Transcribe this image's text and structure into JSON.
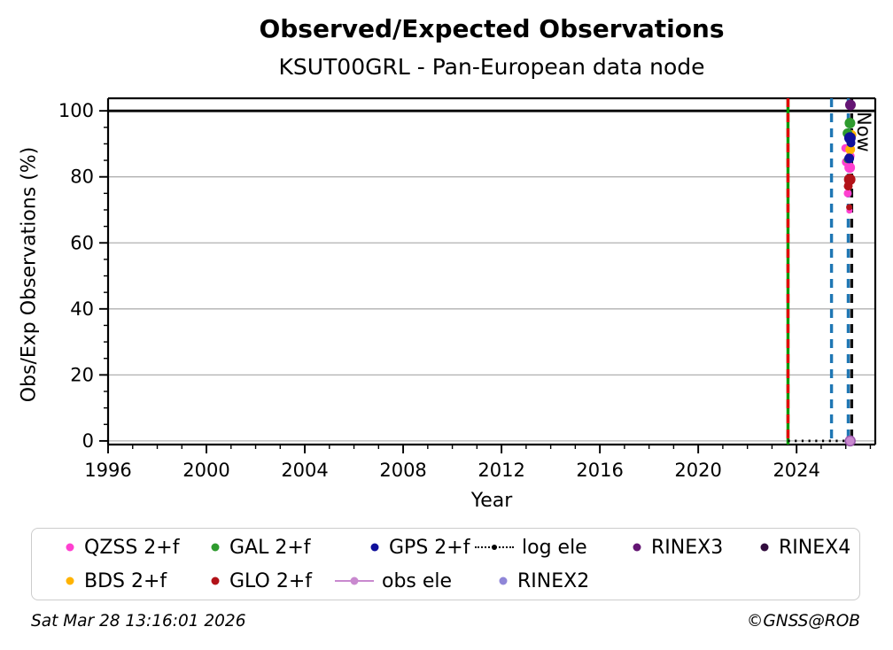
{
  "footer": {
    "timestamp": "Sat Mar 28 13:16:01 2026",
    "copyright": "©GNSS@ROB"
  },
  "chart_data": {
    "type": "scatter",
    "title": "Observed/Expected Observations",
    "subtitle": "KSUT00GRL - Pan-European data node",
    "xlabel": "Year",
    "ylabel": "Obs/Exp Observations (%)",
    "xlim": [
      1996,
      2027.2
    ],
    "ylim": [
      -1.1,
      103.8
    ],
    "xticks": [
      1996,
      2000,
      2004,
      2008,
      2012,
      2016,
      2020,
      2024
    ],
    "yticks": [
      0,
      20,
      40,
      60,
      80,
      100
    ],
    "x_minor_step": 1,
    "y_minor_step": 5,
    "grid": "horizontal",
    "grid_color": "#b0b0b0",
    "reference_hline": {
      "y": 100,
      "color": "#000000"
    },
    "now_annotation": {
      "label": "Now",
      "x": 2026.24
    },
    "vlines": [
      {
        "x": 2023.65,
        "color": "#009a00",
        "style": "solid"
      },
      {
        "x": 2023.65,
        "color": "#e30000",
        "style": "dashed"
      },
      {
        "x": 2025.42,
        "color": "#1f77b4",
        "style": "dashed"
      },
      {
        "x": 2026.1,
        "color": "#1f77b4",
        "style": "dashed"
      },
      {
        "x": 2026.24,
        "color": "#101010",
        "style": "dashed"
      }
    ],
    "series": [
      {
        "name": "log ele",
        "color": "#000000",
        "marker": "dotted-line",
        "line": [
          [
            2023.65,
            0
          ],
          [
            2026.24,
            0
          ]
        ],
        "points": []
      },
      {
        "name": "QZSS 2+f",
        "color": "#ff40d0",
        "marker": "dot",
        "points": [
          [
            2025.98,
            88.7,
            4.5
          ],
          [
            2026.18,
            86.3,
            5
          ],
          [
            2026.02,
            84.5,
            5
          ],
          [
            2026.16,
            82.8,
            6
          ],
          [
            2026.08,
            75,
            4.5
          ],
          [
            2026.15,
            69.8,
            3.5
          ]
        ]
      },
      {
        "name": "BDS 2+f",
        "color": "#ffb300",
        "marker": "dot",
        "points": [
          [
            2026.23,
            92.7,
            5.5
          ],
          [
            2026.18,
            88.3,
            5.5
          ]
        ]
      },
      {
        "name": "GLO 2+f",
        "color": "#b21218",
        "marker": "dot",
        "points": [
          [
            2026.16,
            79.2,
            6.5
          ],
          [
            2026.1,
            77.2,
            5
          ],
          [
            2026.14,
            70.8,
            3.5
          ]
        ]
      },
      {
        "name": "GAL 2+f",
        "color": "#2e9b2e",
        "marker": "dot",
        "points": [
          [
            2026.17,
            96.3,
            6
          ],
          [
            2026.07,
            93.2,
            5.5
          ],
          [
            2026.06,
            85.2,
            4
          ]
        ]
      },
      {
        "name": "GPS 2+f",
        "color": "#10109b",
        "marker": "dot",
        "points": [
          [
            2026.17,
            91.8,
            6.5
          ],
          [
            2026.21,
            90.3,
            5
          ],
          [
            2026.14,
            85.6,
            5.5
          ]
        ]
      },
      {
        "name": "obs ele",
        "color": "#c989cf",
        "edge": "#9b59ad",
        "marker": "line-dot",
        "points": [
          [
            2026.18,
            0,
            5.5
          ]
        ]
      },
      {
        "name": "RINEX2",
        "color": "#8f86d8",
        "marker": "dot",
        "points": []
      },
      {
        "name": "RINEX3",
        "color": "#641573",
        "marker": "dot",
        "points": [
          [
            2026.19,
            101.8,
            6
          ]
        ]
      },
      {
        "name": "RINEX4",
        "color": "#320d3e",
        "marker": "dot",
        "points": []
      }
    ]
  },
  "legend": {
    "items": [
      {
        "label": "QZSS 2+f",
        "color": "#ff40d0",
        "marker": "dot"
      },
      {
        "label": "GAL 2+f",
        "color": "#2e9b2e",
        "marker": "dot"
      },
      {
        "label": "GPS 2+f",
        "color": "#10109b",
        "marker": "dot"
      },
      {
        "label": "log ele",
        "color": "#000000",
        "marker": "dotted-line"
      },
      {
        "label": "RINEX3",
        "color": "#641573",
        "marker": "dot"
      },
      {
        "label": "RINEX4",
        "color": "#320d3e",
        "marker": "dot"
      },
      {
        "label": "BDS 2+f",
        "color": "#ffb300",
        "marker": "dot"
      },
      {
        "label": "GLO 2+f",
        "color": "#b21218",
        "marker": "dot"
      },
      {
        "label": "obs ele",
        "color": "#c989cf",
        "marker": "line-dot"
      },
      {
        "label": "RINEX2",
        "color": "#8f86d8",
        "marker": "dot"
      }
    ]
  }
}
